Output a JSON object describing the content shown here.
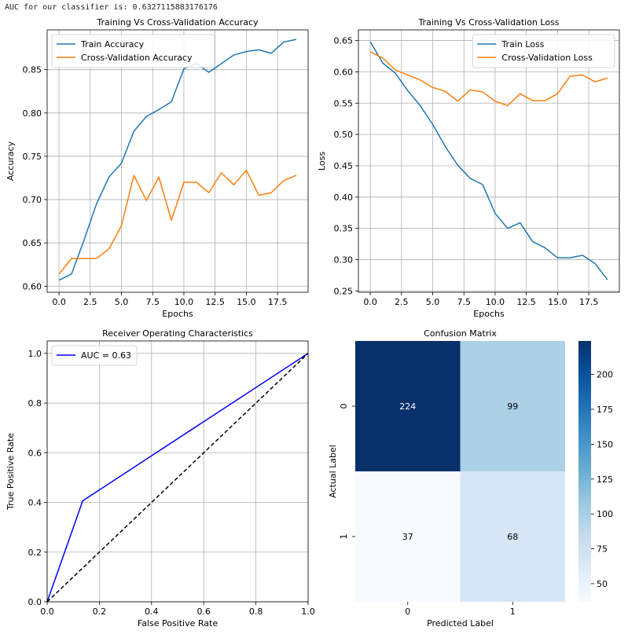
{
  "output_text": "AUC for our classifier is: 0.6327115883176176",
  "chart_data": [
    {
      "type": "line",
      "title": "Training Vs Cross-Validation Accuracy",
      "xlabel": "Epochs",
      "ylabel": "Accuracy",
      "xlim": [
        -0.95,
        19.95
      ],
      "ylim": [
        0.593,
        0.896
      ],
      "xticks": [
        0,
        2.5,
        5,
        7.5,
        10,
        12.5,
        15,
        17.5
      ],
      "xtick_labels": [
        "0.0",
        "2.5",
        "5.0",
        "7.5",
        "10.0",
        "12.5",
        "15.0",
        "17.5"
      ],
      "yticks": [
        0.6,
        0.65,
        0.7,
        0.75,
        0.8,
        0.85
      ],
      "ytick_labels": [
        "0.60",
        "0.65",
        "0.70",
        "0.75",
        "0.80",
        "0.85"
      ],
      "grid": true,
      "legend": "upper left",
      "x": [
        0,
        1,
        2,
        3,
        4,
        5,
        6,
        7,
        8,
        9,
        10,
        11,
        12,
        13,
        14,
        15,
        16,
        17,
        18,
        19
      ],
      "series": [
        {
          "name": "Train Accuracy",
          "color": "#1f77b4",
          "values": [
            0.607,
            0.614,
            0.653,
            0.695,
            0.726,
            0.742,
            0.779,
            0.796,
            0.804,
            0.813,
            0.851,
            0.857,
            0.847,
            0.857,
            0.867,
            0.871,
            0.873,
            0.869,
            0.882,
            0.885
          ]
        },
        {
          "name": "Cross-Validation Accuracy",
          "color": "#ff7f0e",
          "values": [
            0.614,
            0.632,
            0.632,
            0.632,
            0.643,
            0.67,
            0.728,
            0.699,
            0.726,
            0.676,
            0.72,
            0.72,
            0.708,
            0.731,
            0.717,
            0.734,
            0.705,
            0.708,
            0.722,
            0.728
          ]
        }
      ]
    },
    {
      "type": "line",
      "title": "Training Vs Cross-Validation Loss",
      "xlabel": "Epochs",
      "ylabel": "Loss",
      "xlim": [
        -0.95,
        19.95
      ],
      "ylim": [
        0.248,
        0.667
      ],
      "xticks": [
        0,
        2.5,
        5,
        7.5,
        10,
        12.5,
        15,
        17.5
      ],
      "xtick_labels": [
        "0.0",
        "2.5",
        "5.0",
        "7.5",
        "10.0",
        "12.5",
        "15.0",
        "17.5"
      ],
      "yticks": [
        0.25,
        0.3,
        0.35,
        0.4,
        0.45,
        0.5,
        0.55,
        0.6,
        0.65
      ],
      "ytick_labels": [
        "0.25",
        "0.30",
        "0.35",
        "0.40",
        "0.45",
        "0.50",
        "0.55",
        "0.60",
        "0.65"
      ],
      "grid": true,
      "legend": "upper right",
      "x": [
        0,
        1,
        2,
        3,
        4,
        5,
        6,
        7,
        8,
        9,
        10,
        11,
        12,
        13,
        14,
        15,
        16,
        17,
        18,
        19
      ],
      "series": [
        {
          "name": "Train Loss",
          "color": "#1f77b4",
          "values": [
            0.648,
            0.614,
            0.598,
            0.57,
            0.546,
            0.516,
            0.481,
            0.451,
            0.43,
            0.42,
            0.374,
            0.35,
            0.359,
            0.329,
            0.319,
            0.303,
            0.303,
            0.307,
            0.294,
            0.268
          ]
        },
        {
          "name": "Cross-Validation Loss",
          "color": "#ff7f0e",
          "values": [
            0.632,
            0.622,
            0.603,
            0.595,
            0.587,
            0.575,
            0.569,
            0.553,
            0.571,
            0.568,
            0.553,
            0.546,
            0.565,
            0.554,
            0.554,
            0.565,
            0.593,
            0.595,
            0.584,
            0.59
          ]
        }
      ]
    },
    {
      "type": "line",
      "title": "Receiver Operating Characteristics",
      "xlabel": "False Positive Rate",
      "ylabel": "True Positive Rate",
      "xlim": [
        0,
        1
      ],
      "ylim": [
        0,
        1.05
      ],
      "xticks": [
        0,
        0.2,
        0.4,
        0.6,
        0.8,
        1.0
      ],
      "xtick_labels": [
        "0.0",
        "0.2",
        "0.4",
        "0.6",
        "0.8",
        "1.0"
      ],
      "yticks": [
        0,
        0.2,
        0.4,
        0.6,
        0.8,
        1.0
      ],
      "ytick_labels": [
        "0.0",
        "0.2",
        "0.4",
        "0.6",
        "0.8",
        "1.0"
      ],
      "grid": true,
      "legend": "upper left",
      "series": [
        {
          "name": "AUC = 0.63",
          "color": "#0000ff",
          "x": [
            0,
            0.1362,
            1
          ],
          "values": [
            0,
            0.4065,
            1
          ]
        },
        {
          "color": "#000000",
          "dashed": true,
          "x": [
            0,
            1
          ],
          "values": [
            0,
            1
          ]
        }
      ]
    },
    {
      "type": "heatmap",
      "title": "Confusion Matrix",
      "xlabel": "Predicted Label",
      "ylabel": "Actual Label",
      "xtick_labels": [
        "0",
        "1"
      ],
      "ytick_labels": [
        "0",
        "1"
      ],
      "values": [
        [
          224,
          99
        ],
        [
          37,
          68
        ]
      ],
      "colorbar": {
        "min": 37,
        "max": 224,
        "ticks": [
          50,
          75,
          100,
          125,
          150,
          175,
          200
        ],
        "tick_labels": [
          "50",
          "75",
          "100",
          "125",
          "150",
          "175",
          "200"
        ]
      },
      "colormap": "Blues"
    }
  ]
}
